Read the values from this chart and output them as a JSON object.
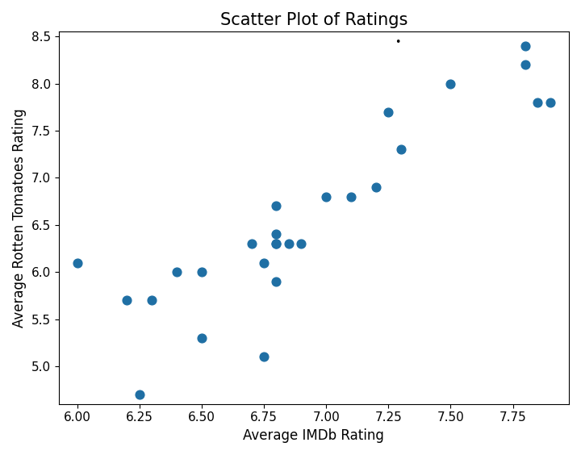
{
  "title": "Scatter Plot of Ratings",
  "title_dot": "•",
  "xlabel": "Average IMDb Rating",
  "ylabel": "Average Rotten Tomatoes Rating",
  "x": [
    6.0,
    6.2,
    6.25,
    6.3,
    6.4,
    6.5,
    6.5,
    6.7,
    6.75,
    6.75,
    6.8,
    6.8,
    6.8,
    6.8,
    6.8,
    6.85,
    6.9,
    7.0,
    7.1,
    7.2,
    7.25,
    7.3,
    7.5,
    7.8,
    7.8,
    7.85,
    7.9
  ],
  "y": [
    6.1,
    5.7,
    4.7,
    5.7,
    6.0,
    6.0,
    5.3,
    6.3,
    6.1,
    5.1,
    6.3,
    6.4,
    6.7,
    6.3,
    5.9,
    6.3,
    6.3,
    6.8,
    6.8,
    6.9,
    7.7,
    7.3,
    8.0,
    8.4,
    8.2,
    7.8,
    7.8
  ],
  "color": "#1f6fa4",
  "marker": "o",
  "markersize": 60,
  "xlim": [
    5.925,
    7.975
  ],
  "ylim": [
    4.6,
    8.55
  ],
  "figsize": [
    7.2,
    5.64
  ],
  "dpi": 100,
  "title_fontsize": 15,
  "label_fontsize": 12,
  "tick_fontsize": 11
}
